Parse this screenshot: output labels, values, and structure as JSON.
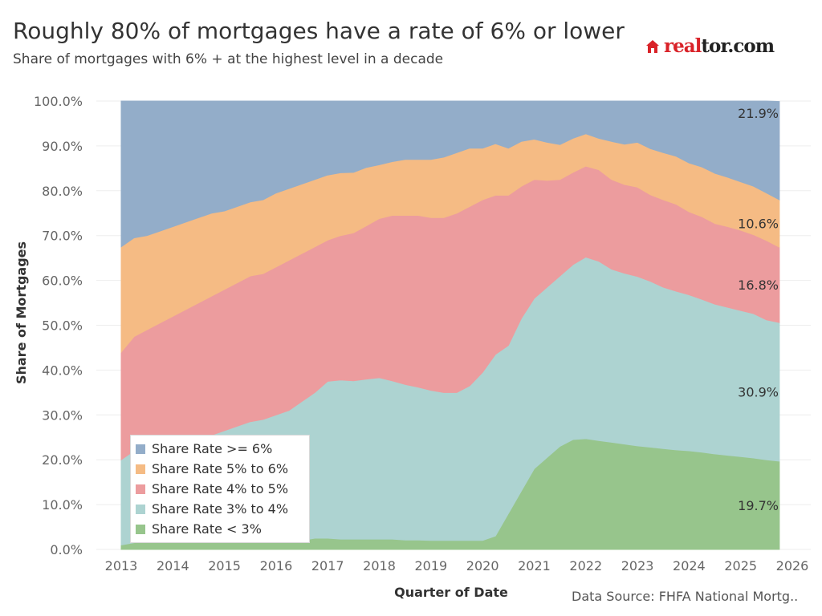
{
  "header": {
    "title": "Roughly 80% of mortgages have a rate of 6% or lower",
    "subtitle": "Share of mortgages with 6% + at the highest level in a decade"
  },
  "logo": {
    "part1": "real",
    "part2": "tor.com"
  },
  "source": "Data Source: FHFA National Mortg..",
  "colors": {
    "s1": "#97c58c",
    "s2": "#add3d1",
    "s3": "#ec9c9e",
    "s4": "#f5bb84",
    "s5": "#93adc9"
  },
  "chart_data": {
    "type": "area",
    "stacked": true,
    "title": "Roughly 80% of mortgages have a rate of 6% or lower",
    "xlabel": "Quarter of Date",
    "ylabel": "Share of Mortgages",
    "xlim": [
      2013,
      2026
    ],
    "ylim": [
      0,
      100
    ],
    "x_ticks": [
      "2013",
      "2014",
      "2015",
      "2016",
      "2017",
      "2018",
      "2019",
      "2020",
      "2021",
      "2022",
      "2023",
      "2024",
      "2025",
      "2026"
    ],
    "y_ticks": [
      "0.0%",
      "10.0%",
      "20.0%",
      "30.0%",
      "40.0%",
      "50.0%",
      "60.0%",
      "70.0%",
      "80.0%",
      "90.0%",
      "100.0%"
    ],
    "legend_position": "bottom-left",
    "x": [
      2013.0,
      2013.25,
      2013.5,
      2013.75,
      2014.0,
      2014.25,
      2014.5,
      2014.75,
      2015.0,
      2015.25,
      2015.5,
      2015.75,
      2016.0,
      2016.25,
      2016.5,
      2016.75,
      2017.0,
      2017.25,
      2017.5,
      2017.75,
      2018.0,
      2018.25,
      2018.5,
      2018.75,
      2019.0,
      2019.25,
      2019.5,
      2019.75,
      2020.0,
      2020.25,
      2020.5,
      2020.75,
      2021.0,
      2021.25,
      2021.5,
      2021.75,
      2022.0,
      2022.25,
      2022.5,
      2022.75,
      2023.0,
      2023.25,
      2023.5,
      2023.75,
      2024.0,
      2024.25,
      2024.5,
      2024.75,
      2025.0,
      2025.25,
      2025.5,
      2025.75
    ],
    "series": [
      {
        "name": "Share Rate < 3%",
        "color": "#97c58c",
        "values": [
          1.0,
          1.5,
          2.0,
          2.0,
          2.0,
          2.0,
          2.0,
          2.0,
          2.0,
          2.0,
          2.0,
          2.0,
          2.0,
          2.0,
          2.0,
          2.5,
          2.5,
          2.3,
          2.3,
          2.3,
          2.3,
          2.3,
          2.1,
          2.1,
          2.0,
          2.0,
          2.0,
          2.0,
          2.0,
          3.0,
          8.0,
          13.0,
          18.0,
          20.5,
          23.0,
          24.5,
          24.7,
          24.3,
          23.9,
          23.5,
          23.1,
          22.8,
          22.5,
          22.2,
          22.0,
          21.7,
          21.3,
          21.0,
          20.7,
          20.4,
          20.0,
          19.7
        ]
      },
      {
        "name": "Share Rate 3% to 4%",
        "color": "#add3d1",
        "values": [
          19.0,
          20.5,
          21.0,
          21.5,
          22.0,
          22.5,
          23.0,
          23.5,
          24.5,
          25.5,
          26.5,
          27.0,
          28.0,
          29.0,
          31.0,
          32.5,
          35.0,
          35.5,
          35.3,
          35.7,
          36.0,
          35.3,
          34.7,
          34.1,
          33.5,
          33.0,
          33.0,
          34.5,
          37.5,
          40.5,
          37.5,
          38.5,
          38.0,
          38.0,
          38.0,
          39.0,
          40.5,
          40.0,
          38.6,
          38.1,
          37.8,
          37.0,
          36.0,
          35.4,
          34.8,
          34.1,
          33.4,
          33.0,
          32.6,
          32.2,
          31.2,
          30.9
        ]
      },
      {
        "name": "Share Rate 4% to 5%",
        "color": "#ec9c9e",
        "values": [
          24.0,
          25.5,
          26.0,
          27.0,
          28.0,
          29.0,
          30.0,
          31.0,
          31.5,
          32.0,
          32.5,
          32.5,
          33.0,
          33.5,
          33.0,
          32.5,
          31.5,
          32.2,
          33.0,
          34.2,
          35.5,
          36.9,
          37.7,
          38.3,
          38.5,
          39.0,
          40.0,
          40.0,
          38.5,
          35.5,
          33.5,
          29.5,
          26.5,
          23.8,
          21.5,
          20.6,
          20.3,
          20.4,
          20.0,
          19.8,
          19.9,
          19.3,
          19.5,
          19.4,
          18.5,
          18.4,
          18.0,
          18.0,
          17.9,
          17.6,
          17.7,
          16.8
        ]
      },
      {
        "name": "Share Rate 5% to 6%",
        "color": "#f5bb84",
        "values": [
          23.5,
          22.0,
          21.0,
          20.5,
          20.0,
          19.5,
          19.0,
          18.5,
          17.5,
          17.0,
          16.5,
          16.5,
          16.5,
          16.0,
          15.5,
          15.0,
          14.5,
          14.0,
          13.5,
          13.0,
          12.0,
          12.0,
          12.5,
          12.5,
          13.0,
          13.5,
          13.5,
          13.0,
          11.5,
          11.5,
          10.5,
          10.0,
          9.0,
          8.5,
          7.8,
          7.6,
          7.2,
          7.0,
          8.5,
          9.0,
          10.0,
          10.3,
          10.5,
          10.7,
          10.9,
          11.1,
          11.2,
          11.0,
          10.8,
          10.8,
          10.6,
          10.6
        ]
      },
      {
        "name": "Share Rate >= 6%",
        "color": "#93adc9",
        "values": [
          32.5,
          30.5,
          30.0,
          29.0,
          28.0,
          27.0,
          26.0,
          25.0,
          24.5,
          23.5,
          22.5,
          22.0,
          20.5,
          19.5,
          18.5,
          17.5,
          16.5,
          16.0,
          15.9,
          14.8,
          14.2,
          13.5,
          13.0,
          13.0,
          13.0,
          12.5,
          11.5,
          10.5,
          10.5,
          9.5,
          10.5,
          9.0,
          8.5,
          9.2,
          9.7,
          8.3,
          7.3,
          8.3,
          9.0,
          9.6,
          9.2,
          10.6,
          11.5,
          12.3,
          13.8,
          14.7,
          16.1,
          17.0,
          18.0,
          19.0,
          20.5,
          21.9
        ]
      }
    ],
    "end_labels": [
      "19.7%",
      "30.9%",
      "16.8%",
      "10.6%",
      "21.9%"
    ]
  }
}
